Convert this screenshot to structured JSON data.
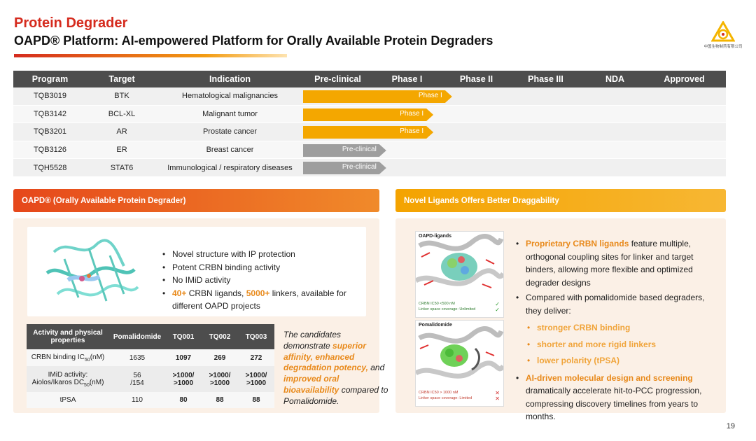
{
  "header": {
    "title": "Protein Degrader",
    "subtitle": "OAPD® Platform: AI-empowered Platform for Orally Available Protein Degraders",
    "logo_icon": "triangle-logo-icon",
    "logo_text": "中国生物制药有限公司"
  },
  "pipeline": {
    "columns": [
      "Program",
      "Target",
      "Indication",
      "Pre-clinical",
      "Phase I",
      "Phase II",
      "Phase III",
      "NDA",
      "Approved"
    ],
    "rows": [
      {
        "program": "TQB3019",
        "target": "BTK",
        "indication": "Hematological malignancies",
        "stage": "Phase I",
        "progress_stages": 2.15,
        "color": "#f4a700"
      },
      {
        "program": "TQB3142",
        "target": "BCL-XL",
        "indication": "Malignant tumor",
        "stage": "Phase I",
        "progress_stages": 1.88,
        "color": "#f4a700"
      },
      {
        "program": "TQB3201",
        "target": "AR",
        "indication": "Prostate cancer",
        "stage": "Phase I",
        "progress_stages": 1.88,
        "color": "#f4a700"
      },
      {
        "program": "TQB3126",
        "target": "ER",
        "indication": "Breast cancer",
        "stage": "Pre-clinical",
        "progress_stages": 1.2,
        "color": "#9e9e9e"
      },
      {
        "program": "TQH5528",
        "target": "STAT6",
        "indication": "Immunological / respiratory diseases",
        "stage": "Pre-clinical",
        "progress_stages": 1.2,
        "color": "#9e9e9e"
      }
    ]
  },
  "left_section": {
    "title": "OAPD® (Orally Available Protein Degrader)",
    "image_icon": "protein-structure-icon",
    "bullets": [
      {
        "text": "Novel structure with IP protection"
      },
      {
        "text": "Potent CRBN binding activity"
      },
      {
        "text": "No IMiD activity"
      }
    ],
    "bullet4": {
      "hl1": "40+",
      "t1": " CRBN ligands, ",
      "hl2": "5000+",
      "t2": " linkers, available for different OAPD projects"
    },
    "table": {
      "headers": [
        "Activity and physical properties",
        "Pomalidomide",
        "TQ001",
        "TQ002",
        "TQ003"
      ],
      "row1": {
        "label_pre": "CRBN binding IC",
        "label_sub": "50",
        "label_post": "(nM)",
        "values": [
          "1635",
          "1097",
          "269",
          "272"
        ]
      },
      "row2": {
        "label_line1": "IMiD activity:",
        "label_line2_pre": "Aiolos/Ikaros DC",
        "label_line2_sub": "50",
        "label_line2_post": "(nM)",
        "values": [
          [
            "56",
            "/154"
          ],
          [
            ">1000/",
            ">1000"
          ],
          [
            ">1000/",
            ">1000"
          ],
          [
            ">1000/",
            ">1000"
          ]
        ]
      },
      "row3": {
        "label": "tPSA",
        "values": [
          "110",
          "80",
          "88",
          "88"
        ]
      }
    },
    "candidates": {
      "t1": "The candidates demonstrate ",
      "h1": "superior affinity, enhanced degradation potency,",
      "t2": " and ",
      "h2": "improved oral bioavailability",
      "t3": " compared to Pomalidomide."
    }
  },
  "right_section": {
    "title": "Novel Ligands Offers Better Draggability",
    "card1": {
      "label": "OAPD-ligands",
      "note1": "CRBN IC50 <500 nM",
      "note2": "Linker space coverage: Unlimited"
    },
    "card2": {
      "label": "Pomalidomide",
      "note1": "CRBN IC50 > 1000 nM",
      "note2": "Linker space coverage: Limited"
    },
    "b1": {
      "hl": "Proprietary CRBN ligands",
      "t": " feature multiple, orthogonal coupling sites for linker and target binders, allowing more flexible and optimized degrader designs"
    },
    "b2": {
      "t": "Compared with pomalidomide based degraders, they deliver:"
    },
    "subs": [
      "stronger CRBN binding",
      "shorter and more rigid linkers",
      "lower polarity (tPSA)"
    ],
    "b3": {
      "hl": "AI-driven molecular design and screening",
      "t": " dramatically accelerate hit-to-PCC progression, compressing discovery timelines from years to months."
    }
  },
  "page_number": "19"
}
